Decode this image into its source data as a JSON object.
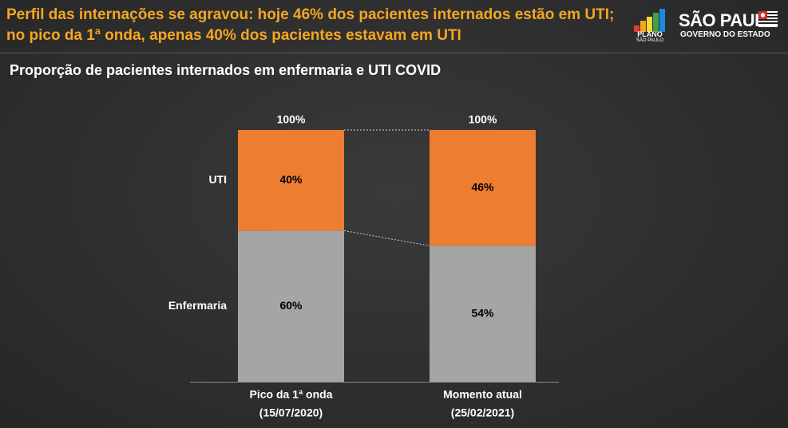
{
  "header": {
    "headline_line1": "Perfil das internações se agravou: hoje 46% dos pacientes internados estão em UTI;",
    "headline_line2": "no pico da 1ª onda, apenas 40% dos pacientes estavam em UTI",
    "logo_plano": {
      "line1": "PLANO",
      "line2": "SÃO PAULO",
      "bar_colors": [
        "#e53935",
        "#f5a623",
        "#fdd835",
        "#43a047",
        "#1e88e5"
      ]
    },
    "logo_governo": {
      "line1": "SÃO PAULO",
      "line2": "GOVERNO DO ESTADO"
    }
  },
  "subtitle": "Proporção de pacientes internados em enfermaria e UTI COVID",
  "colors": {
    "uti": "#ed7d31",
    "enfermaria": "#a5a5a5",
    "headline": "#f5a623"
  },
  "chart_data": {
    "type": "bar",
    "stacked": true,
    "normalized_percent": true,
    "categories": [
      "Pico da 1ª onda (15/07/2020)",
      "Momento atual (25/02/2021)"
    ],
    "category_lines": [
      [
        "Pico da 1ª onda",
        "(15/07/2020)"
      ],
      [
        "Momento atual",
        "(25/02/2021)"
      ]
    ],
    "series": [
      {
        "name": "Enfermaria",
        "values": [
          60,
          54
        ],
        "labels": [
          "60%",
          "54%"
        ]
      },
      {
        "name": "UTI",
        "values": [
          40,
          46
        ],
        "labels": [
          "40%",
          "46%"
        ]
      }
    ],
    "totals": [
      "100%",
      "100%"
    ],
    "ylim": [
      0,
      100
    ],
    "legend_placement": "left-inline",
    "connector_lines": true
  }
}
